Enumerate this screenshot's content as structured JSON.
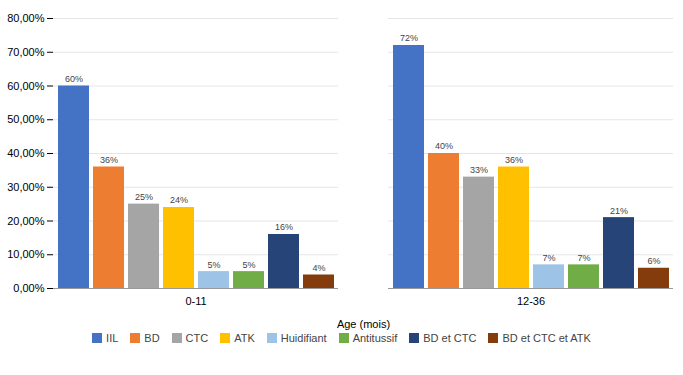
{
  "chart_data": {
    "type": "bar",
    "xlabel": "Age (mois)",
    "categories": [
      "0-11",
      "12-36"
    ],
    "series": [
      {
        "name": "IIL",
        "color": "#4472C4",
        "values": [
          60,
          72
        ],
        "value_labels": [
          "60%",
          "72%"
        ]
      },
      {
        "name": "BD",
        "color": "#ED7D31",
        "values": [
          36,
          40
        ],
        "value_labels": [
          "36%",
          "40%"
        ]
      },
      {
        "name": "CTC",
        "color": "#A5A5A5",
        "values": [
          25,
          33
        ],
        "value_labels": [
          "25%",
          "33%"
        ]
      },
      {
        "name": "ATK",
        "color": "#FFC000",
        "values": [
          24,
          36
        ],
        "value_labels": [
          "24%",
          "36%"
        ]
      },
      {
        "name": "Huidifiant",
        "color": "#9DC3E6",
        "values": [
          5,
          7
        ],
        "value_labels": [
          "5%",
          "7%"
        ]
      },
      {
        "name": "Antitussif",
        "color": "#70AD47",
        "values": [
          5,
          7
        ],
        "value_labels": [
          "5%",
          "7%"
        ]
      },
      {
        "name": "BD et CTC",
        "color": "#264478",
        "values": [
          16,
          21
        ],
        "value_labels": [
          "16%",
          "21%"
        ]
      },
      {
        "name": "BD et CTC et ATK",
        "color": "#843C0C",
        "values": [
          4,
          6
        ],
        "value_labels": [
          "4%",
          "6%"
        ]
      }
    ],
    "ylim": [
      0,
      80
    ],
    "yticks": [
      {
        "value": 0,
        "label": "0,00%"
      },
      {
        "value": 10,
        "label": "10,00%"
      },
      {
        "value": 20,
        "label": "20,00%"
      },
      {
        "value": 30,
        "label": "30,00%"
      },
      {
        "value": 40,
        "label": "40,00%"
      },
      {
        "value": 50,
        "label": "50,00%"
      },
      {
        "value": 60,
        "label": "60,00%"
      },
      {
        "value": 70,
        "label": "70,00%"
      },
      {
        "value": 80,
        "label": "80,00%"
      }
    ],
    "grid": true,
    "legend": "bottom",
    "data_labels": true
  }
}
